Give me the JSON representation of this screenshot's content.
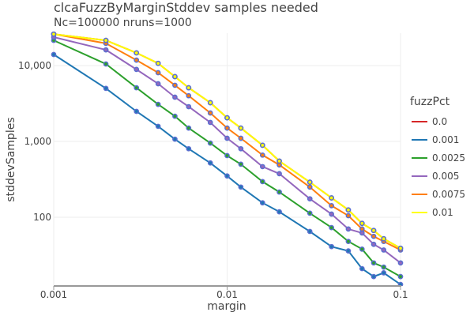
{
  "chart_data": {
    "type": "line",
    "title": "clcaFuzzByMarginStddev samples needed",
    "subtitle": "Nc=100000 nruns=1000",
    "xlabel": "margin",
    "ylabel": "stddevSamples",
    "xscale": "log",
    "yscale": "log",
    "xlim": [
      0.001,
      0.1
    ],
    "ylim": [
      12.7,
      30000
    ],
    "x_ticks": [
      "0.001",
      "0.01",
      "0.1"
    ],
    "y_ticks": [
      "100",
      "1,000",
      "10,000"
    ],
    "grid": true,
    "legend_title": "fuzzPct",
    "legend_position": "right",
    "x": [
      0.001,
      0.002,
      0.003,
      0.004,
      0.005,
      0.006,
      0.008,
      0.01,
      0.012,
      0.016,
      0.02,
      0.03,
      0.04,
      0.05,
      0.06,
      0.07,
      0.08,
      0.1
    ],
    "series": [
      {
        "name": "0.0",
        "color": "#d62728",
        "values": [
          26000,
          21500,
          14700,
          10700,
          7150,
          5100,
          3240,
          2050,
          1500,
          890,
          550,
          290,
          180,
          125,
          83,
          67,
          52,
          39
        ]
      },
      {
        "name": "0.001",
        "color": "#1f77b4",
        "values": [
          14000,
          5000,
          2490,
          1580,
          1070,
          800,
          520,
          350,
          250,
          155,
          118,
          65,
          41,
          36,
          21,
          16.5,
          18.5,
          13
        ]
      },
      {
        "name": "0.0025",
        "color": "#2ca02c",
        "values": [
          21500,
          10500,
          5100,
          3080,
          2150,
          1500,
          950,
          650,
          500,
          295,
          215,
          113,
          73,
          48,
          38,
          25,
          22,
          16.5
        ]
      },
      {
        "name": "0.005",
        "color": "#9467bd",
        "values": [
          23700,
          16100,
          8900,
          5760,
          3830,
          2870,
          1780,
          1100,
          800,
          465,
          375,
          175,
          110,
          70,
          62,
          44,
          37,
          25
        ]
      },
      {
        "name": "0.0075",
        "color": "#ff7f0e",
        "values": [
          26000,
          19600,
          11800,
          8060,
          5500,
          4000,
          2370,
          1500,
          1100,
          660,
          490,
          250,
          142,
          105,
          70,
          56,
          48,
          37
        ]
      },
      {
        "name": "0.01",
        "color": "#ffff00",
        "values": [
          26000,
          21500,
          14700,
          10700,
          7150,
          5100,
          3240,
          2050,
          1500,
          890,
          550,
          290,
          180,
          125,
          83,
          67,
          52,
          39
        ]
      }
    ],
    "marker_color": "#5a6fd0"
  }
}
